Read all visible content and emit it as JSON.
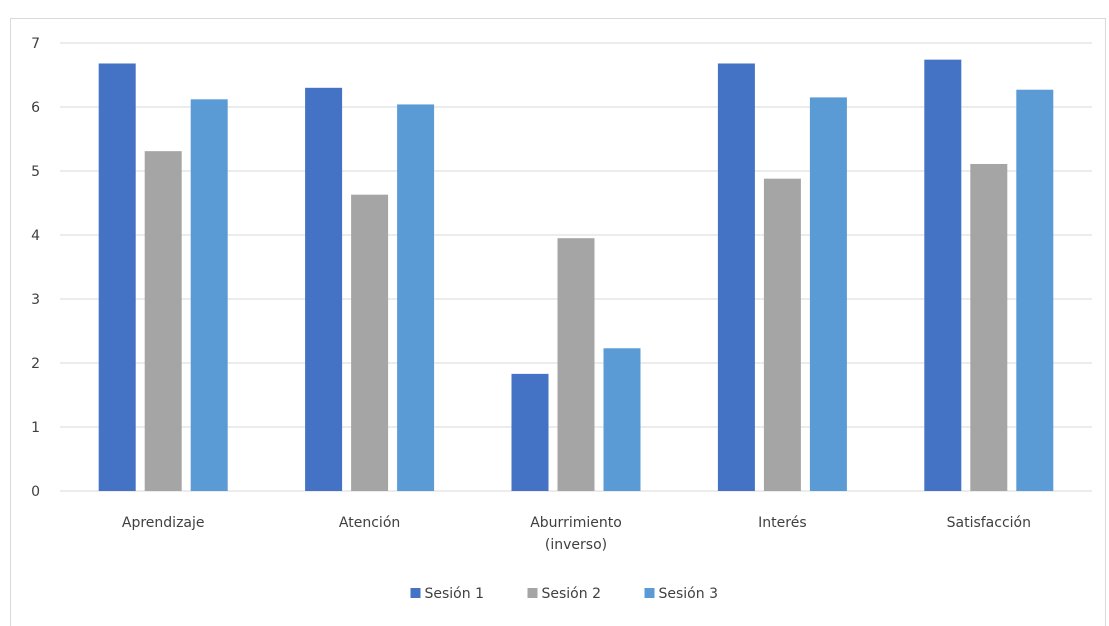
{
  "chart_data": {
    "type": "bar",
    "title": "",
    "xlabel": "",
    "ylabel": "",
    "ylim": [
      0,
      7
    ],
    "yticks": [
      0,
      1,
      2,
      3,
      4,
      5,
      6,
      7
    ],
    "grid": true,
    "legend_position": "bottom",
    "categories": [
      [
        "Aprendizaje"
      ],
      [
        "Atención"
      ],
      [
        "Aburrimiento",
        "(inverso)"
      ],
      [
        "Interés"
      ],
      [
        "Satisfacción"
      ]
    ],
    "series": [
      {
        "name": "Sesión 1",
        "color": "#4472c4",
        "values": [
          6.68,
          6.3,
          1.83,
          6.68,
          6.74
        ]
      },
      {
        "name": "Sesión 2",
        "color": "#a5a5a5",
        "values": [
          5.31,
          4.63,
          3.95,
          4.88,
          5.11
        ]
      },
      {
        "name": "Sesión 3",
        "color": "#5b9bd5",
        "values": [
          6.12,
          6.04,
          2.23,
          6.15,
          6.27
        ]
      }
    ]
  }
}
